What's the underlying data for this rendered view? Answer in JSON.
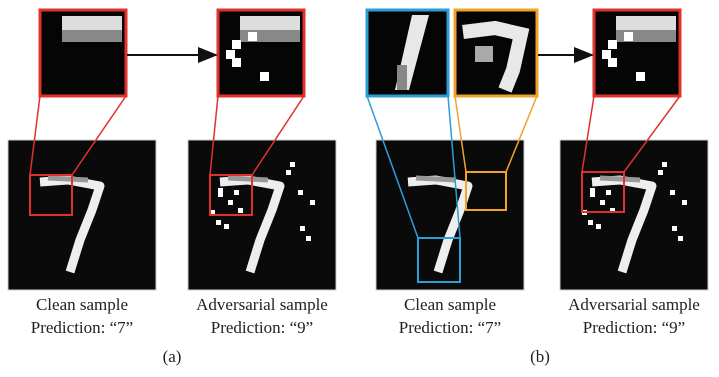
{
  "panels": [
    {
      "label": "(a)",
      "samples": [
        {
          "caption": "Clean sample",
          "prediction": "Prediction: “7”"
        },
        {
          "caption": "Adversarial sample",
          "prediction": "Prediction: “9”"
        }
      ]
    },
    {
      "label": "(b)",
      "samples": [
        {
          "caption": "Clean sample",
          "prediction": "Prediction: “7”"
        },
        {
          "caption": "Adversarial sample",
          "prediction": "Prediction: “9”"
        }
      ]
    }
  ]
}
